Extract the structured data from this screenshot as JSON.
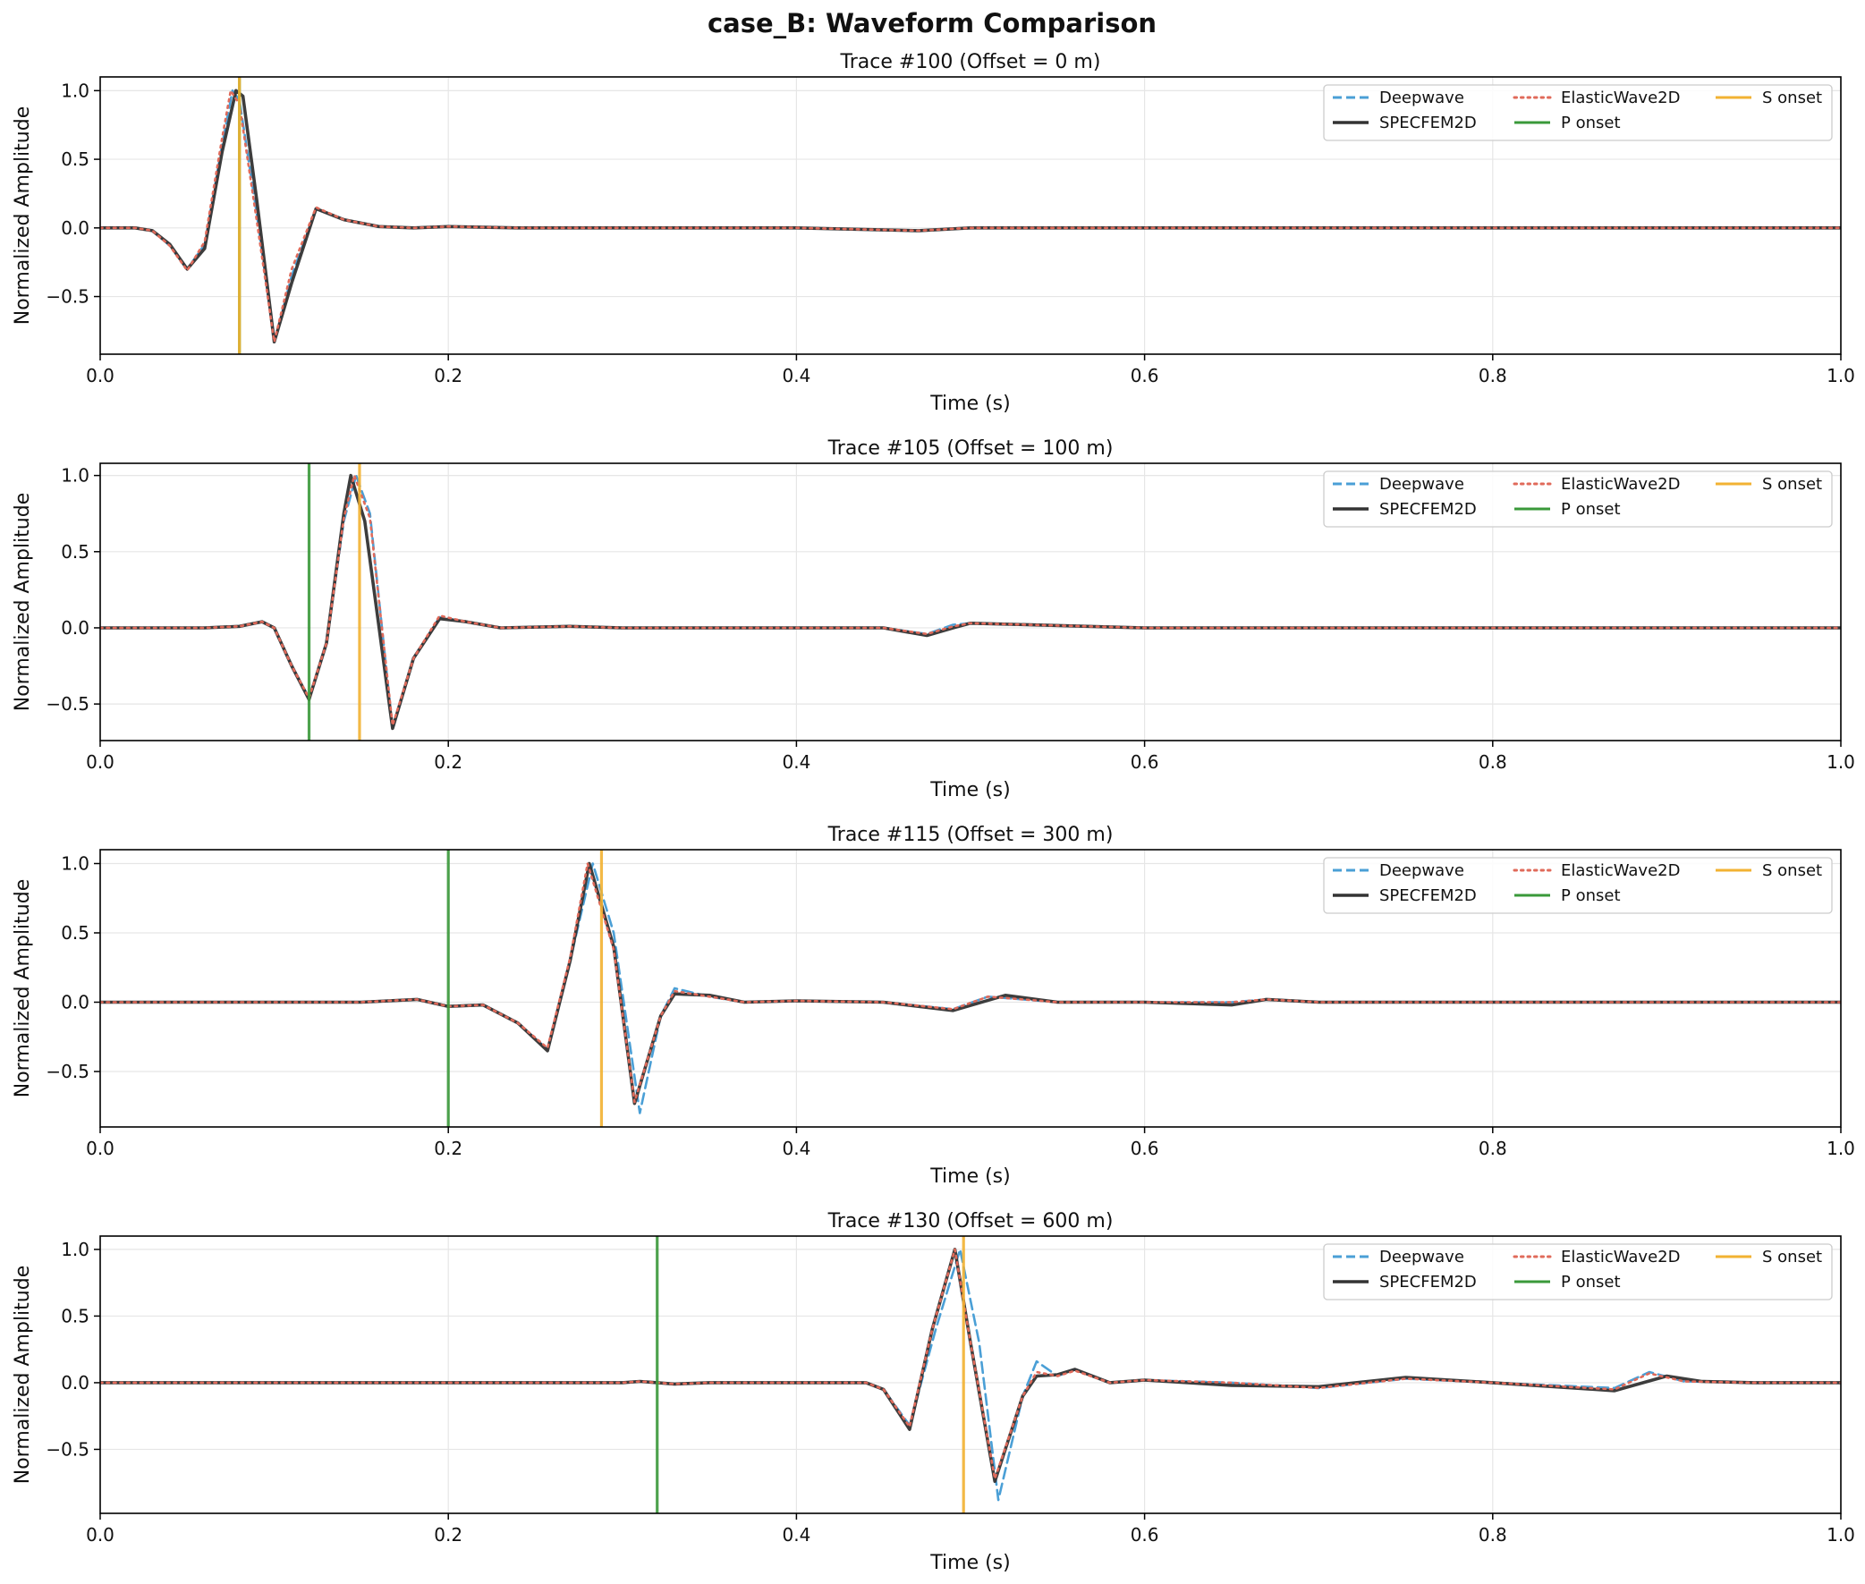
{
  "figure": {
    "title": "case_B: Waveform Comparison"
  },
  "colors": {
    "Deepwave": "#4a9fd6",
    "SPECFEM2D": "#333333",
    "ElasticWave2D": "#e06a5a",
    "P onset": "#3a993a",
    "S onset": "#f2b232",
    "grid": "#e6e6e6",
    "axes": "#000000"
  },
  "legend": {
    "placement": "upper-right",
    "entries": [
      "Deepwave",
      "SPECFEM2D",
      "ElasticWave2D",
      "P onset",
      "S onset"
    ]
  },
  "chart_data": [
    {
      "type": "line",
      "title": "Trace #100 (Offset = 0 m)",
      "xlabel": "Time (s)",
      "ylabel": "Normalized Amplitude",
      "xlim": [
        0.0,
        1.0
      ],
      "ylim": [
        -0.92,
        1.1
      ],
      "xticks": [
        0.0,
        0.2,
        0.4,
        0.6,
        0.8,
        1.0
      ],
      "xtick_labels": [
        "0.0",
        "0.2",
        "0.4",
        "0.6",
        "0.8",
        "1.0"
      ],
      "yticks": [
        -0.5,
        0.0,
        0.5,
        1.0
      ],
      "ytick_labels": [
        "−0.5",
        "0.0",
        "0.5",
        "1.0"
      ],
      "grid": true,
      "p_onset": 0.08,
      "s_onset": 0.08,
      "series": [
        {
          "name": "Deepwave",
          "style": "dashed",
          "x": [
            0,
            0.02,
            0.03,
            0.04,
            0.05,
            0.06,
            0.07,
            0.076,
            0.08,
            0.09,
            0.1,
            0.11,
            0.124,
            0.14,
            0.16,
            0.18,
            0.2,
            0.24,
            0.3,
            0.4,
            0.47,
            0.5,
            0.6,
            0.8,
            1.0
          ],
          "y": [
            0,
            0,
            -0.02,
            -0.13,
            -0.3,
            -0.12,
            0.6,
            1.0,
            0.93,
            0.1,
            -0.83,
            -0.35,
            0.14,
            0.06,
            0.01,
            0.0,
            0.01,
            0.0,
            0.0,
            0.0,
            -0.02,
            0.0,
            0.0,
            0.0,
            0.0
          ]
        },
        {
          "name": "SPECFEM2D",
          "style": "solid",
          "x": [
            0,
            0.02,
            0.03,
            0.04,
            0.05,
            0.06,
            0.07,
            0.078,
            0.082,
            0.09,
            0.1,
            0.11,
            0.124,
            0.14,
            0.16,
            0.18,
            0.2,
            0.24,
            0.3,
            0.4,
            0.47,
            0.5,
            0.6,
            0.8,
            1.0
          ],
          "y": [
            0,
            0,
            -0.02,
            -0.12,
            -0.3,
            -0.15,
            0.55,
            1.0,
            0.96,
            0.2,
            -0.83,
            -0.4,
            0.14,
            0.06,
            0.01,
            0.0,
            0.01,
            0.0,
            0.0,
            0.0,
            -0.02,
            0.0,
            0.0,
            0.0,
            0.0
          ]
        },
        {
          "name": "ElasticWave2D",
          "style": "dotted",
          "x": [
            0,
            0.02,
            0.03,
            0.04,
            0.05,
            0.06,
            0.07,
            0.075,
            0.08,
            0.09,
            0.1,
            0.11,
            0.124,
            0.14,
            0.16,
            0.18,
            0.2,
            0.24,
            0.3,
            0.4,
            0.47,
            0.5,
            0.6,
            0.8,
            1.0
          ],
          "y": [
            0,
            0,
            -0.02,
            -0.13,
            -0.31,
            -0.1,
            0.65,
            1.0,
            0.9,
            0.05,
            -0.83,
            -0.3,
            0.15,
            0.06,
            0.01,
            0.0,
            0.01,
            0.0,
            0.0,
            0.0,
            -0.02,
            0.0,
            0.0,
            0.0,
            0.0
          ]
        }
      ]
    },
    {
      "type": "line",
      "title": "Trace #105 (Offset = 100 m)",
      "xlabel": "Time (s)",
      "ylabel": "Normalized Amplitude",
      "xlim": [
        0.0,
        1.0
      ],
      "ylim": [
        -0.74,
        1.08
      ],
      "xticks": [
        0.0,
        0.2,
        0.4,
        0.6,
        0.8,
        1.0
      ],
      "xtick_labels": [
        "0.0",
        "0.2",
        "0.4",
        "0.6",
        "0.8",
        "1.0"
      ],
      "yticks": [
        -0.5,
        0.0,
        0.5,
        1.0
      ],
      "ytick_labels": [
        "−0.5",
        "0.0",
        "0.5",
        "1.0"
      ],
      "grid": true,
      "p_onset": 0.12,
      "s_onset": 0.149,
      "series": [
        {
          "name": "Deepwave",
          "style": "dashed",
          "x": [
            0,
            0.06,
            0.08,
            0.093,
            0.1,
            0.11,
            0.12,
            0.13,
            0.14,
            0.147,
            0.155,
            0.168,
            0.18,
            0.195,
            0.21,
            0.23,
            0.27,
            0.3,
            0.4,
            0.45,
            0.475,
            0.49,
            0.5,
            0.6,
            0.8,
            1.0
          ],
          "y": [
            0,
            0,
            0.01,
            0.04,
            0.0,
            -0.25,
            -0.46,
            -0.1,
            0.7,
            1.0,
            0.75,
            -0.66,
            -0.2,
            0.07,
            0.04,
            0.0,
            0.01,
            0.0,
            0.0,
            0.0,
            -0.04,
            0.02,
            0.03,
            0.0,
            0.0,
            0.0
          ]
        },
        {
          "name": "SPECFEM2D",
          "style": "solid",
          "x": [
            0,
            0.06,
            0.08,
            0.093,
            0.1,
            0.11,
            0.12,
            0.13,
            0.14,
            0.144,
            0.152,
            0.168,
            0.18,
            0.195,
            0.21,
            0.23,
            0.27,
            0.3,
            0.4,
            0.45,
            0.475,
            0.49,
            0.5,
            0.6,
            0.8,
            1.0
          ],
          "y": [
            0,
            0,
            0.01,
            0.04,
            0.0,
            -0.25,
            -0.47,
            -0.1,
            0.75,
            1.0,
            0.7,
            -0.66,
            -0.2,
            0.06,
            0.04,
            0.0,
            0.01,
            0.0,
            0.0,
            0.0,
            -0.05,
            0.0,
            0.03,
            0.0,
            0.0,
            0.0
          ]
        },
        {
          "name": "ElasticWave2D",
          "style": "dotted",
          "x": [
            0,
            0.06,
            0.08,
            0.093,
            0.1,
            0.11,
            0.12,
            0.13,
            0.14,
            0.146,
            0.155,
            0.168,
            0.18,
            0.195,
            0.21,
            0.23,
            0.27,
            0.3,
            0.4,
            0.45,
            0.475,
            0.49,
            0.5,
            0.6,
            0.8,
            1.0
          ],
          "y": [
            0,
            0,
            0.01,
            0.04,
            0.0,
            -0.25,
            -0.46,
            -0.1,
            0.72,
            1.0,
            0.72,
            -0.64,
            -0.2,
            0.08,
            0.04,
            0.0,
            0.01,
            0.0,
            0.0,
            0.0,
            -0.04,
            0.01,
            0.03,
            0.0,
            0.0,
            0.0
          ]
        }
      ]
    },
    {
      "type": "line",
      "title": "Trace #115 (Offset = 300 m)",
      "xlabel": "Time (s)",
      "ylabel": "Normalized Amplitude",
      "xlim": [
        0.0,
        1.0
      ],
      "ylim": [
        -0.9,
        1.1
      ],
      "xticks": [
        0.0,
        0.2,
        0.4,
        0.6,
        0.8,
        1.0
      ],
      "xtick_labels": [
        "0.0",
        "0.2",
        "0.4",
        "0.6",
        "0.8",
        "1.0"
      ],
      "yticks": [
        -0.5,
        0.0,
        0.5,
        1.0
      ],
      "ytick_labels": [
        "−0.5",
        "0.0",
        "0.5",
        "1.0"
      ],
      "grid": true,
      "p_onset": 0.2,
      "s_onset": 0.288,
      "series": [
        {
          "name": "Deepwave",
          "style": "dashed",
          "x": [
            0,
            0.15,
            0.182,
            0.2,
            0.22,
            0.24,
            0.257,
            0.27,
            0.283,
            0.295,
            0.31,
            0.322,
            0.33,
            0.35,
            0.37,
            0.4,
            0.45,
            0.49,
            0.51,
            0.55,
            0.6,
            0.65,
            0.67,
            0.7,
            0.8,
            1.0
          ],
          "y": [
            0,
            0,
            0.02,
            -0.03,
            -0.02,
            -0.15,
            -0.34,
            0.3,
            1.0,
            0.5,
            -0.8,
            -0.1,
            0.1,
            0.04,
            0.0,
            0.01,
            0.0,
            -0.05,
            0.04,
            0.0,
            0.0,
            0.0,
            0.02,
            0.0,
            0.0,
            0.0
          ]
        },
        {
          "name": "SPECFEM2D",
          "style": "solid",
          "x": [
            0,
            0.15,
            0.182,
            0.2,
            0.22,
            0.24,
            0.257,
            0.27,
            0.281,
            0.295,
            0.307,
            0.322,
            0.33,
            0.35,
            0.37,
            0.4,
            0.45,
            0.49,
            0.52,
            0.55,
            0.6,
            0.65,
            0.67,
            0.7,
            0.8,
            1.0
          ],
          "y": [
            0,
            0,
            0.02,
            -0.03,
            -0.02,
            -0.15,
            -0.35,
            0.3,
            1.0,
            0.4,
            -0.73,
            -0.1,
            0.06,
            0.05,
            0.0,
            0.01,
            0.0,
            -0.06,
            0.05,
            0.0,
            0.0,
            -0.02,
            0.02,
            0.0,
            0.0,
            0.0
          ]
        },
        {
          "name": "ElasticWave2D",
          "style": "dotted",
          "x": [
            0,
            0.15,
            0.182,
            0.2,
            0.22,
            0.24,
            0.257,
            0.27,
            0.28,
            0.295,
            0.307,
            0.322,
            0.33,
            0.35,
            0.37,
            0.4,
            0.45,
            0.49,
            0.51,
            0.55,
            0.6,
            0.65,
            0.67,
            0.7,
            0.8,
            1.0
          ],
          "y": [
            0,
            0,
            0.02,
            -0.03,
            -0.02,
            -0.15,
            -0.33,
            0.32,
            1.0,
            0.38,
            -0.72,
            -0.1,
            0.08,
            0.04,
            0.0,
            0.01,
            0.0,
            -0.05,
            0.04,
            0.0,
            0.0,
            0.0,
            0.02,
            0.0,
            0.0,
            0.0
          ]
        }
      ]
    },
    {
      "type": "line",
      "title": "Trace #130 (Offset = 600 m)",
      "xlabel": "Time (s)",
      "ylabel": "Normalized Amplitude",
      "xlim": [
        0.0,
        1.0
      ],
      "ylim": [
        -0.98,
        1.1
      ],
      "xticks": [
        0.0,
        0.2,
        0.4,
        0.6,
        0.8,
        1.0
      ],
      "xtick_labels": [
        "0.0",
        "0.2",
        "0.4",
        "0.6",
        "0.8",
        "1.0"
      ],
      "yticks": [
        -0.5,
        0.0,
        0.5,
        1.0
      ],
      "ytick_labels": [
        "−0.5",
        "0.0",
        "0.5",
        "1.0"
      ],
      "grid": true,
      "p_onset": 0.32,
      "s_onset": 0.496,
      "series": [
        {
          "name": "Deepwave",
          "style": "dashed",
          "x": [
            0,
            0.3,
            0.31,
            0.32,
            0.33,
            0.35,
            0.44,
            0.45,
            0.465,
            0.48,
            0.494,
            0.505,
            0.516,
            0.53,
            0.538,
            0.55,
            0.56,
            0.58,
            0.6,
            0.65,
            0.7,
            0.75,
            0.8,
            0.87,
            0.89,
            0.91,
            0.95,
            1.0
          ],
          "y": [
            0,
            0,
            0.01,
            0.0,
            -0.01,
            0.0,
            0.0,
            -0.05,
            -0.32,
            0.4,
            1.0,
            0.3,
            -0.88,
            -0.1,
            0.16,
            0.05,
            0.1,
            0.0,
            0.02,
            0.0,
            -0.04,
            0.03,
            0.0,
            -0.04,
            0.08,
            0.01,
            0.0,
            0.0
          ]
        },
        {
          "name": "SPECFEM2D",
          "style": "solid",
          "x": [
            0,
            0.3,
            0.31,
            0.32,
            0.33,
            0.35,
            0.44,
            0.45,
            0.465,
            0.478,
            0.491,
            0.5,
            0.514,
            0.53,
            0.538,
            0.55,
            0.56,
            0.58,
            0.6,
            0.65,
            0.7,
            0.75,
            0.8,
            0.87,
            0.9,
            0.92,
            0.95,
            1.0
          ],
          "y": [
            0,
            0,
            0.01,
            0.0,
            -0.01,
            0.0,
            0.0,
            -0.05,
            -0.35,
            0.4,
            1.0,
            0.3,
            -0.74,
            -0.1,
            0.05,
            0.06,
            0.1,
            0.0,
            0.02,
            -0.02,
            -0.03,
            0.04,
            0.0,
            -0.06,
            0.05,
            0.01,
            0.0,
            0.0
          ]
        },
        {
          "name": "ElasticWave2D",
          "style": "dotted",
          "x": [
            0,
            0.3,
            0.31,
            0.32,
            0.33,
            0.35,
            0.44,
            0.45,
            0.465,
            0.478,
            0.491,
            0.5,
            0.514,
            0.53,
            0.538,
            0.55,
            0.56,
            0.58,
            0.6,
            0.65,
            0.7,
            0.75,
            0.8,
            0.87,
            0.89,
            0.91,
            0.95,
            1.0
          ],
          "y": [
            0,
            0,
            0.01,
            0.0,
            -0.01,
            0.0,
            0.0,
            -0.05,
            -0.33,
            0.4,
            1.0,
            0.3,
            -0.72,
            -0.1,
            0.08,
            0.05,
            0.09,
            0.0,
            0.02,
            0.0,
            -0.04,
            0.03,
            0.0,
            -0.05,
            0.07,
            0.01,
            0.0,
            0.0
          ]
        }
      ]
    }
  ]
}
